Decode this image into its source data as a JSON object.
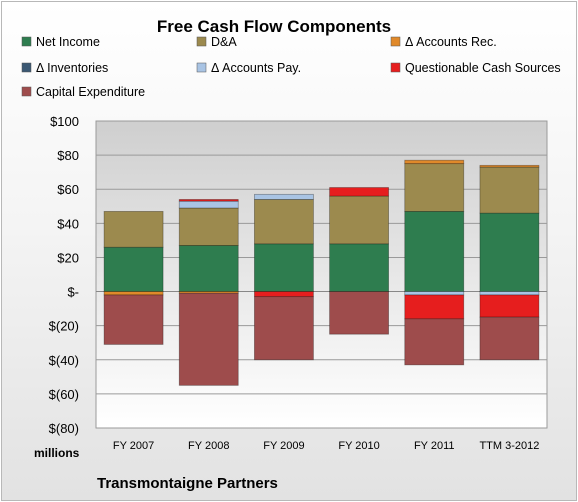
{
  "chart_data": {
    "type": "bar",
    "stacked": true,
    "title": "Free Cash Flow Components",
    "unit_label": "millions",
    "footer": "Transmontaigne Partners",
    "categories": [
      "FY 2007",
      "FY 2008",
      "FY 2009",
      "FY 2010",
      "FY 2011",
      "TTM 3-2012"
    ],
    "ylim": [
      -80,
      100
    ],
    "yticks": [
      100,
      80,
      60,
      40,
      20,
      0,
      -20,
      -40,
      -60,
      -80
    ],
    "ytick_labels": [
      "$100",
      "$80",
      "$60",
      "$40",
      "$20",
      "$-",
      "$(20)",
      "$(40)",
      "$(60)",
      "$(80)"
    ],
    "grid": true,
    "legend_position": "top",
    "series": [
      {
        "name": "Net Income",
        "color": "#2e7d4f",
        "values": [
          26,
          27,
          28,
          28,
          47,
          46
        ]
      },
      {
        "name": "D&A",
        "color": "#9c8a4e",
        "values": [
          21,
          22,
          26,
          28,
          28,
          27
        ]
      },
      {
        "name": "Δ Accounts Rec.",
        "color": "#e0892a",
        "values": [
          -2,
          -1,
          0,
          0,
          2,
          1
        ]
      },
      {
        "name": "Δ Inventories",
        "color": "#3b5873",
        "values": [
          0,
          0,
          0,
          0,
          0,
          0
        ]
      },
      {
        "name": "Δ Accounts Pay.",
        "color": "#a9c4e4",
        "values": [
          0,
          4,
          3,
          0,
          -2,
          -2
        ]
      },
      {
        "name": "Questionable Cash Sources",
        "color": "#e61e1e",
        "values": [
          0,
          1,
          -3,
          5,
          -14,
          -13
        ]
      },
      {
        "name": "Capital Expenditure",
        "color": "#9e4c4c",
        "values": [
          -29,
          -54,
          -37,
          -25,
          -27,
          -25
        ]
      }
    ]
  }
}
